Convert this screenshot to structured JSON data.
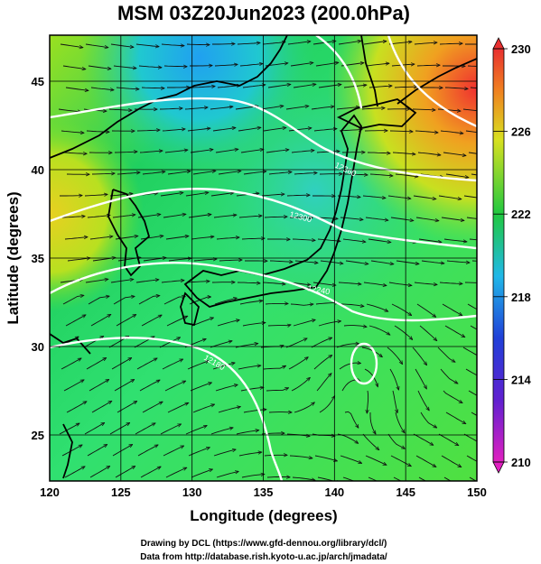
{
  "chart_data": {
    "type": "heatmap",
    "title": "MSM 03Z20Jun2023 (200.0hPa)",
    "xlabel": "Longitude (degrees)",
    "ylabel": "Latitude  (degrees)",
    "xlim": [
      120,
      150
    ],
    "ylim": [
      22.4,
      47.6
    ],
    "x_ticks": [
      120,
      125,
      130,
      135,
      140,
      145,
      150
    ],
    "y_ticks": [
      25,
      30,
      35,
      40,
      45
    ],
    "grid": true,
    "colorbar": {
      "range": [
        210,
        230
      ],
      "ticks": [
        210,
        214,
        218,
        222,
        226,
        230
      ],
      "colors": [
        "#e020c0",
        "#2030d0",
        "#20b0e8",
        "#20c840",
        "#d8e020",
        "#f08020",
        "#e83030"
      ]
    },
    "contours": [
      {
        "label": "12360",
        "lat": 41.0
      },
      {
        "label": "12300",
        "lat": 38.5
      },
      {
        "label": "12240",
        "lat": 33.8
      },
      {
        "label": "12180",
        "lat": 29.5
      }
    ]
  },
  "credits": {
    "line1": "Drawing by DCL (https://www.gfd-dennou.org/library/dcl/)",
    "line2": "Data from http://database.rish.kyoto-u.ac.jp/arch/jmadata/"
  },
  "colors": {
    "coast": "#000000",
    "contour": "#ffffff",
    "streamline": "#111111"
  }
}
